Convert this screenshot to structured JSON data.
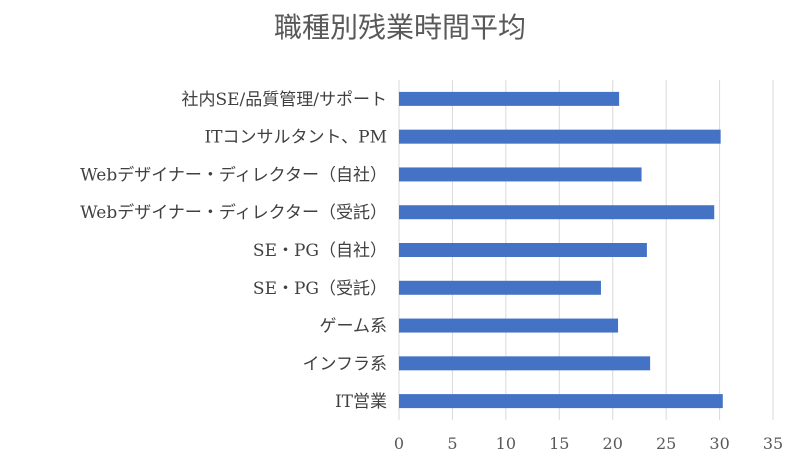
{
  "chart_data": {
    "type": "bar",
    "orientation": "horizontal",
    "title": "職種別残業時間平均",
    "categories": [
      "社内SE/品質管理/サポート",
      "ITコンサルタント、PM",
      "Webデザイナー・ディレクター（自社）",
      "Webデザイナー・ディレクター（受託）",
      "SE・PG（自社）",
      "SE・PG（受託）",
      "ゲーム系",
      "インフラ系",
      "IT営業"
    ],
    "values": [
      20.6,
      30.1,
      22.7,
      29.5,
      23.2,
      18.9,
      20.5,
      23.5,
      30.3
    ],
    "xlim": [
      0,
      35
    ],
    "xticks": [
      0,
      5,
      10,
      15,
      20,
      25,
      30,
      35
    ],
    "xlabel": "",
    "ylabel": "",
    "grid": "vertical",
    "legend": "none",
    "bar_color": "#4472C4",
    "grid_color": "#D9D9D9"
  }
}
